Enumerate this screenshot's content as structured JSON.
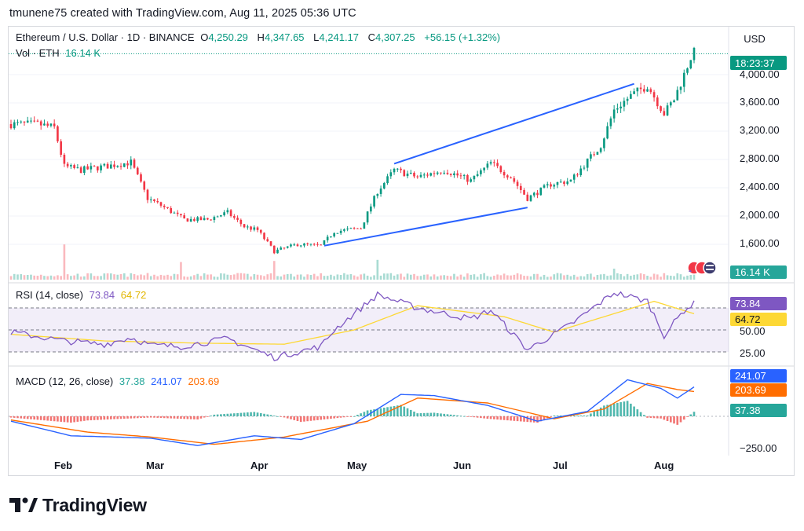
{
  "attribution": "tmunene75 created with TradingView.com, Aug 11, 2025 05:36 UTC",
  "legend": {
    "symbol": "Ethereum / U.S. Dollar · 1D · BINANCE",
    "open_label": "O",
    "open": "4,250.29",
    "high_label": "H",
    "high": "4,347.65",
    "low_label": "L",
    "low": "4,241.17",
    "close_label": "C",
    "close": "4,307.25",
    "change": "+56.15 (+1.32%)",
    "vol_label": "Vol · ETH",
    "vol_value": "16.14 K"
  },
  "price_axis": {
    "currency": "USD",
    "ticks": [
      "4,000.00",
      "3,600.00",
      "3,200.00",
      "2,800.00",
      "2,400.00",
      "2,000.00",
      "1,600.00"
    ],
    "current_price_countdown": "18:23:37",
    "volume_tag": "16.14 K"
  },
  "rsi_pane": {
    "title": "RSI (14, close)",
    "rsi_value": "73.84",
    "ma_value": "64.72",
    "ticks": [
      "50.00",
      "25.00"
    ]
  },
  "macd_pane": {
    "title": "MACD (12, 26, close)",
    "hist_value": "37.38",
    "macd_value": "241.07",
    "signal_value": "203.69",
    "ticks": [
      "−250.00"
    ]
  },
  "time_axis": [
    "Feb",
    "Mar",
    "Apr",
    "May",
    "Jun",
    "Jul",
    "Aug"
  ],
  "brand": "TradingView",
  "colors": {
    "up": "#089981",
    "down": "#f23645",
    "trendline": "#2962ff",
    "rsi": "#7e57c2",
    "rsi_ma": "#fdd835",
    "macd": "#2962ff",
    "signal": "#ff6d00",
    "hist_up": "#26a69a",
    "hist_down": "#ef5350"
  },
  "chart_data": {
    "type": "candlestick",
    "title": "Ethereum / U.S. Dollar · 1D · BINANCE",
    "x_range": [
      "2025-01-18",
      "2025-08-11"
    ],
    "ylim": [
      1400,
      4400
    ],
    "price_anchors": [
      [
        "2025-01-18",
        3300
      ],
      [
        "2025-01-22",
        3300
      ],
      [
        "2025-01-26",
        3300
      ],
      [
        "2025-01-31",
        3250
      ],
      [
        "2025-02-03",
        2700
      ],
      [
        "2025-02-08",
        2650
      ],
      [
        "2025-02-15",
        2700
      ],
      [
        "2025-02-23",
        2760
      ],
      [
        "2025-02-28",
        2250
      ],
      [
        "2025-03-04",
        2150
      ],
      [
        "2025-03-11",
        1950
      ],
      [
        "2025-03-18",
        1950
      ],
      [
        "2025-03-24",
        2050
      ],
      [
        "2025-03-29",
        1850
      ],
      [
        "2025-04-02",
        1800
      ],
      [
        "2025-04-07",
        1500
      ],
      [
        "2025-04-14",
        1600
      ],
      [
        "2025-04-21",
        1580
      ],
      [
        "2025-04-25",
        1780
      ],
      [
        "2025-05-03",
        1830
      ],
      [
        "2025-05-08",
        2350
      ],
      [
        "2025-05-13",
        2650
      ],
      [
        "2025-05-20",
        2550
      ],
      [
        "2025-05-28",
        2650
      ],
      [
        "2025-06-05",
        2500
      ],
      [
        "2025-06-11",
        2750
      ],
      [
        "2025-06-17",
        2550
      ],
      [
        "2025-06-22",
        2250
      ],
      [
        "2025-06-29",
        2450
      ],
      [
        "2025-07-05",
        2500
      ],
      [
        "2025-07-10",
        2780
      ],
      [
        "2025-07-14",
        3000
      ],
      [
        "2025-07-18",
        3500
      ],
      [
        "2025-07-23",
        3700
      ],
      [
        "2025-07-28",
        3850
      ],
      [
        "2025-08-02",
        3450
      ],
      [
        "2025-08-05",
        3650
      ],
      [
        "2025-08-08",
        4000
      ],
      [
        "2025-08-10",
        4250
      ],
      [
        "2025-08-11",
        4307
      ]
    ],
    "volume_spikes": [
      [
        "2025-02-03",
        3.2
      ],
      [
        "2025-03-10",
        1.6
      ],
      [
        "2025-04-07",
        1.7
      ],
      [
        "2025-05-08",
        1.8
      ],
      [
        "2025-07-18",
        1.0
      ]
    ],
    "trendlines": [
      {
        "from": [
          "2025-04-22",
          1580
        ],
        "to": [
          "2025-06-22",
          2120
        ]
      },
      {
        "from": [
          "2025-05-13",
          2740
        ],
        "to": [
          "2025-07-24",
          3870
        ]
      }
    ],
    "rsi": {
      "ylim": [
        0,
        100
      ],
      "bands": [
        70,
        50,
        30
      ],
      "anchors": [
        [
          "2025-01-18",
          48
        ],
        [
          "2025-02-03",
          40
        ],
        [
          "2025-02-15",
          37
        ],
        [
          "2025-02-23",
          43
        ],
        [
          "2025-03-01",
          36
        ],
        [
          "2025-03-10",
          35
        ],
        [
          "2025-03-24",
          42
        ],
        [
          "2025-04-07",
          25
        ],
        [
          "2025-04-21",
          35
        ],
        [
          "2025-04-25",
          50
        ],
        [
          "2025-05-08",
          82
        ],
        [
          "2025-05-20",
          70
        ],
        [
          "2025-06-05",
          60
        ],
        [
          "2025-06-11",
          68
        ],
        [
          "2025-06-22",
          32
        ],
        [
          "2025-07-05",
          55
        ],
        [
          "2025-07-18",
          84
        ],
        [
          "2025-07-28",
          76
        ],
        [
          "2025-08-02",
          45
        ],
        [
          "2025-08-08",
          68
        ],
        [
          "2025-08-11",
          73.84
        ]
      ],
      "ma_anchors": [
        [
          "2025-01-18",
          46
        ],
        [
          "2025-02-15",
          40
        ],
        [
          "2025-03-15",
          38
        ],
        [
          "2025-04-10",
          37
        ],
        [
          "2025-05-01",
          50
        ],
        [
          "2025-05-20",
          72
        ],
        [
          "2025-06-15",
          62
        ],
        [
          "2025-06-30",
          48
        ],
        [
          "2025-07-15",
          62
        ],
        [
          "2025-07-30",
          76
        ],
        [
          "2025-08-11",
          64.72
        ]
      ]
    },
    "macd": {
      "macd_anchors": [
        [
          "2025-01-18",
          -40
        ],
        [
          "2025-02-05",
          -160
        ],
        [
          "2025-02-18",
          -170
        ],
        [
          "2025-03-01",
          -180
        ],
        [
          "2025-03-15",
          -240
        ],
        [
          "2025-04-01",
          -160
        ],
        [
          "2025-04-15",
          -190
        ],
        [
          "2025-05-01",
          -60
        ],
        [
          "2025-05-15",
          180
        ],
        [
          "2025-05-25",
          170
        ],
        [
          "2025-06-10",
          90
        ],
        [
          "2025-06-25",
          -40
        ],
        [
          "2025-07-10",
          40
        ],
        [
          "2025-07-22",
          300
        ],
        [
          "2025-08-01",
          230
        ],
        [
          "2025-08-06",
          150
        ],
        [
          "2025-08-11",
          241.07
        ]
      ],
      "signal_anchors": [
        [
          "2025-01-18",
          -30
        ],
        [
          "2025-02-10",
          -130
        ],
        [
          "2025-03-01",
          -170
        ],
        [
          "2025-03-20",
          -230
        ],
        [
          "2025-04-10",
          -170
        ],
        [
          "2025-05-05",
          -40
        ],
        [
          "2025-05-20",
          150
        ],
        [
          "2025-06-10",
          110
        ],
        [
          "2025-06-30",
          -20
        ],
        [
          "2025-07-15",
          60
        ],
        [
          "2025-07-28",
          270
        ],
        [
          "2025-08-06",
          220
        ],
        [
          "2025-08-11",
          203.69
        ]
      ],
      "last_hist": 37.38
    }
  }
}
